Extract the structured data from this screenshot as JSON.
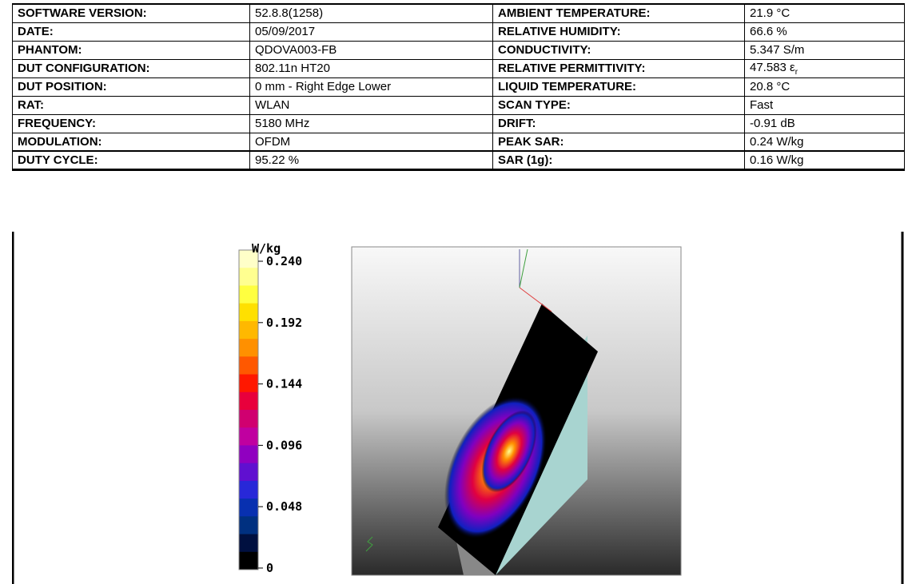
{
  "table": {
    "rows": [
      [
        "SOFTWARE VERSION:",
        "52.8.8(1258)",
        "AMBIENT TEMPERATURE:",
        "21.9 °C"
      ],
      [
        "DATE:",
        "05/09/2017",
        "RELATIVE HUMIDITY:",
        "66.6 %"
      ],
      [
        "PHANTOM:",
        "QDOVA003-FB",
        "CONDUCTIVITY:",
        "5.347 S/m"
      ],
      [
        "DUT CONFIGURATION:",
        "802.11n HT20",
        "RELATIVE PERMITTIVITY:",
        {
          "text": "47.583 ε",
          "sub": "r"
        }
      ],
      [
        "DUT POSITION:",
        "0 mm - Right Edge Lower",
        "LIQUID TEMPERATURE:",
        "20.8 °C"
      ],
      [
        "RAT:",
        "WLAN",
        "SCAN TYPE:",
        "Fast"
      ],
      [
        "FREQUENCY:",
        "5180 MHz",
        "DRIFT:",
        "-0.91 dB"
      ],
      [
        "MODULATION:",
        "OFDM",
        "PEAK SAR:",
        "0.24 W/kg"
      ],
      [
        "DUTY CYCLE:",
        "95.22 %",
        "SAR (1g):",
        "0.16 W/kg"
      ]
    ]
  },
  "colorbar": {
    "unit": "W/kg",
    "labels": [
      "0.240",
      "0.192",
      "0.144",
      "0.096",
      "0.048",
      "0"
    ]
  }
}
